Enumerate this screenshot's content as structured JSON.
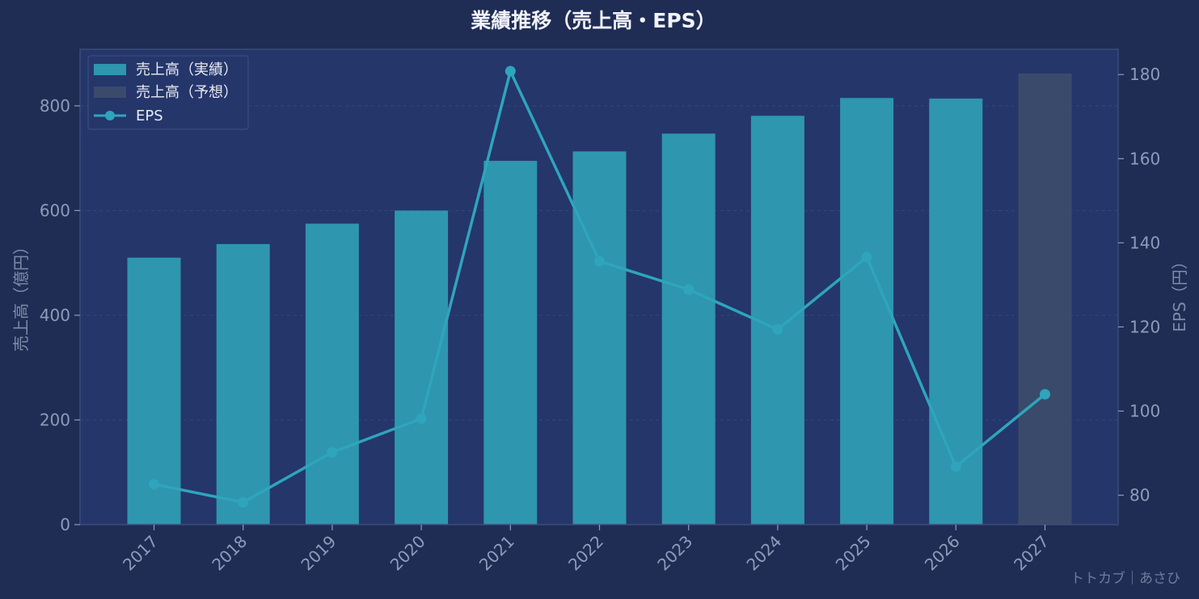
{
  "chart_data": {
    "type": "bar",
    "title": "業績推移（売上高・EPS）",
    "xlabel": "",
    "ylabel": "売上高（億円）",
    "y2label": "EPS（円）",
    "categories": [
      "2017",
      "2018",
      "2019",
      "2020",
      "2021",
      "2022",
      "2023",
      "2024",
      "2025",
      "2026",
      "2027"
    ],
    "ylim": [
      0,
      908
    ],
    "y2lim": [
      73,
      186
    ],
    "yticks": [
      0,
      200,
      400,
      600,
      800
    ],
    "y2ticks": [
      80,
      100,
      120,
      140,
      160,
      180
    ],
    "grid": true,
    "legend_position": "top-left",
    "series": [
      {
        "name": "売上高（実績）",
        "kind": "bar",
        "color": "#2e96ae",
        "values": [
          510,
          536,
          575,
          600,
          695,
          713,
          747,
          781,
          815,
          814,
          null
        ]
      },
      {
        "name": "売上高（予想）",
        "kind": "bar",
        "color": "#3a4a6b",
        "values": [
          null,
          null,
          null,
          null,
          null,
          null,
          null,
          null,
          null,
          null,
          862
        ]
      },
      {
        "name": "EPS",
        "kind": "line",
        "axis": "right",
        "color": "#2ea5bd",
        "values": [
          82.6,
          78.3,
          90.2,
          98.2,
          180.8,
          135.6,
          128.9,
          119.4,
          136.6,
          86.8,
          104.0
        ]
      }
    ]
  },
  "credit": "トトカブ｜あさひ",
  "colors": {
    "background": "#1f2d55",
    "plot_background": "#25366a",
    "frame": "#3b4c7a"
  }
}
